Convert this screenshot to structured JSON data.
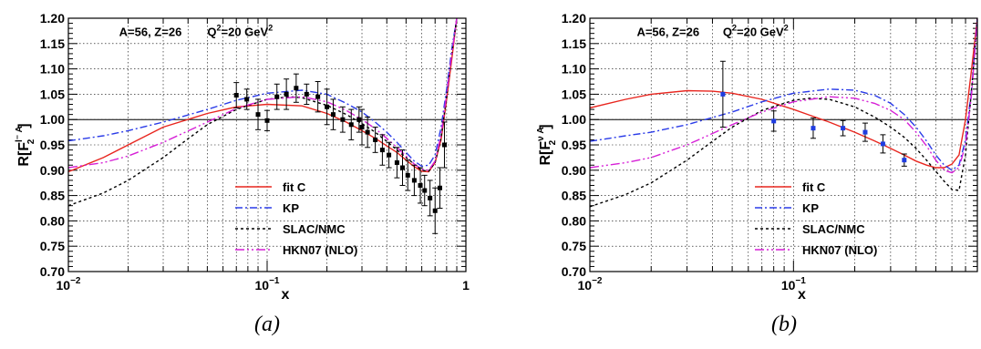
{
  "chart_data": [
    {
      "type": "line",
      "caption": "(a)",
      "xlabel": "x",
      "ylabel_parts": [
        "R[F",
        "l⁻ A",
        "2",
        "]"
      ],
      "xscale": "log",
      "xlim": [
        0.01,
        1.0
      ],
      "ylim": [
        0.7,
        1.2
      ],
      "grid": true,
      "xticks": [
        {
          "v": 0.01,
          "b": "10",
          "e": "−2"
        },
        {
          "v": 0.1,
          "b": "10",
          "e": "−1"
        },
        {
          "v": 1.0,
          "b": "1",
          "e": ""
        }
      ],
      "yticks": [
        0.7,
        0.75,
        0.8,
        0.85,
        0.9,
        0.95,
        1.0,
        1.05,
        1.1,
        1.15,
        1.2
      ],
      "ytick_labels": [
        "0.70",
        "0.75",
        "0.80",
        "0.85",
        "0.90",
        "0.95",
        "1.00",
        "1.05",
        "1.10",
        "1.15",
        "1.20"
      ],
      "annotations": [
        {
          "text": "A=56, Z=26",
          "x": 0.018,
          "y": 1.165
        },
        {
          "text_main": "Q",
          "sup1": "2",
          "text_rest": "=20 GeV",
          "sup2": "2",
          "x": 0.05,
          "y": 1.165
        }
      ],
      "legend_position": "lower-center",
      "reference_line": 1.0,
      "series": [
        {
          "name": "fit C",
          "color": "#e8261f",
          "dash": "solid",
          "x": [
            0.01,
            0.015,
            0.02,
            0.03,
            0.05,
            0.07,
            0.1,
            0.15,
            0.2,
            0.25,
            0.3,
            0.35,
            0.4,
            0.45,
            0.5,
            0.55,
            0.6,
            0.65,
            0.7,
            0.75,
            0.8,
            0.85,
            0.9
          ],
          "y": [
            0.897,
            0.925,
            0.95,
            0.985,
            1.012,
            1.025,
            1.03,
            1.027,
            1.012,
            0.995,
            0.978,
            0.963,
            0.948,
            0.935,
            0.92,
            0.907,
            0.898,
            0.897,
            0.915,
            0.96,
            1.04,
            1.12,
            1.2
          ]
        },
        {
          "name": "KP",
          "color": "#2a3be8",
          "dash": "8,3,2,3",
          "x": [
            0.01,
            0.015,
            0.02,
            0.03,
            0.05,
            0.07,
            0.1,
            0.15,
            0.2,
            0.25,
            0.3,
            0.35,
            0.4,
            0.45,
            0.5,
            0.55,
            0.6,
            0.65,
            0.7,
            0.75,
            0.8,
            0.85,
            0.9
          ],
          "y": [
            0.958,
            0.968,
            0.978,
            0.995,
            1.02,
            1.038,
            1.052,
            1.058,
            1.05,
            1.032,
            1.015,
            0.995,
            0.975,
            0.955,
            0.935,
            0.918,
            0.908,
            0.91,
            0.93,
            0.985,
            1.06,
            1.14,
            1.2
          ]
        },
        {
          "name": "SLAC/NMC",
          "color": "#000000",
          "dash": "3,3",
          "x": [
            0.01,
            0.015,
            0.02,
            0.03,
            0.04,
            0.05,
            0.07,
            0.1,
            0.13,
            0.15,
            0.2,
            0.25,
            0.3,
            0.35,
            0.4,
            0.45,
            0.5,
            0.55,
            0.6,
            0.65,
            0.7,
            0.75,
            0.8,
            0.85,
            0.9
          ],
          "y": [
            0.83,
            0.855,
            0.88,
            0.925,
            0.962,
            0.99,
            1.02,
            1.04,
            1.045,
            1.043,
            1.028,
            1.01,
            0.992,
            0.975,
            0.957,
            0.94,
            0.925,
            0.912,
            0.9,
            0.898,
            0.915,
            0.965,
            1.045,
            1.13,
            1.2
          ]
        },
        {
          "name": "HKN07 (NLO)",
          "color": "#d61fd6",
          "dash": "10,3,2,3,2,3",
          "x": [
            0.01,
            0.015,
            0.02,
            0.03,
            0.05,
            0.07,
            0.1,
            0.15,
            0.2,
            0.25,
            0.3,
            0.35,
            0.4,
            0.45,
            0.5,
            0.55,
            0.6,
            0.65,
            0.7,
            0.75,
            0.8,
            0.85,
            0.9
          ],
          "y": [
            0.905,
            0.915,
            0.928,
            0.955,
            0.995,
            1.022,
            1.04,
            1.045,
            1.035,
            1.018,
            1.0,
            0.982,
            0.963,
            0.945,
            0.928,
            0.912,
            0.902,
            0.9,
            0.918,
            0.97,
            1.05,
            1.13,
            1.2
          ]
        }
      ],
      "points": {
        "color": "#000000",
        "x": [
          0.07,
          0.079,
          0.09,
          0.1,
          0.112,
          0.125,
          0.14,
          0.158,
          0.18,
          0.2,
          0.215,
          0.24,
          0.265,
          0.29,
          0.3,
          0.32,
          0.35,
          0.38,
          0.41,
          0.45,
          0.48,
          0.51,
          0.55,
          0.59,
          0.62,
          0.66,
          0.7,
          0.74,
          0.78
        ],
        "y": [
          1.048,
          1.04,
          1.01,
          0.998,
          1.045,
          1.05,
          1.062,
          1.05,
          1.045,
          1.025,
          1.01,
          1.0,
          0.99,
          1.0,
          0.985,
          0.975,
          0.96,
          0.94,
          0.93,
          0.915,
          0.905,
          0.89,
          0.88,
          0.87,
          0.86,
          0.845,
          0.82,
          0.865,
          0.95
        ],
        "err": [
          0.025,
          0.02,
          0.03,
          0.02,
          0.025,
          0.03,
          0.028,
          0.02,
          0.03,
          0.035,
          0.03,
          0.025,
          0.03,
          0.025,
          0.035,
          0.03,
          0.025,
          0.03,
          0.025,
          0.03,
          0.035,
          0.03,
          0.03,
          0.035,
          0.03,
          0.035,
          0.045,
          0.04,
          0.045
        ]
      }
    },
    {
      "type": "line",
      "caption": "(b)",
      "xlabel": "x",
      "ylabel_parts": [
        "R[F",
        "ν A",
        "2",
        "]"
      ],
      "xscale": "log",
      "xlim": [
        0.01,
        0.8
      ],
      "ylim": [
        0.7,
        1.2
      ],
      "grid": true,
      "xticks": [
        {
          "v": 0.01,
          "b": "10",
          "e": "−2"
        },
        {
          "v": 0.1,
          "b": "10",
          "e": "−1"
        }
      ],
      "yticks": [
        0.7,
        0.75,
        0.8,
        0.85,
        0.9,
        0.95,
        1.0,
        1.05,
        1.1,
        1.15,
        1.2
      ],
      "ytick_labels": [
        "0.70",
        "0.75",
        "0.80",
        "0.85",
        "0.90",
        "0.95",
        "1.00",
        "1.05",
        "1.10",
        "1.15",
        "1.20"
      ],
      "annotations": [
        {
          "text": "A=56, Z=26",
          "x": 0.017,
          "y": 1.165
        },
        {
          "text_main": "Q",
          "sup1": "2",
          "text_rest": "=20 GeV",
          "sup2": "2",
          "x": 0.045,
          "y": 1.165
        }
      ],
      "legend_position": "lower-center",
      "reference_line": 1.0,
      "series": [
        {
          "name": "fit C",
          "color": "#e8261f",
          "dash": "solid",
          "x": [
            0.01,
            0.015,
            0.02,
            0.03,
            0.04,
            0.05,
            0.07,
            0.1,
            0.15,
            0.2,
            0.25,
            0.3,
            0.35,
            0.4,
            0.45,
            0.5,
            0.55,
            0.6,
            0.65,
            0.7,
            0.75,
            0.8
          ],
          "y": [
            1.023,
            1.04,
            1.05,
            1.057,
            1.056,
            1.052,
            1.04,
            1.02,
            0.995,
            0.975,
            0.958,
            0.943,
            0.93,
            0.918,
            0.91,
            0.905,
            0.905,
            0.912,
            0.93,
            1.0,
            1.1,
            1.2
          ]
        },
        {
          "name": "KP",
          "color": "#2a3be8",
          "dash": "8,3,2,3",
          "x": [
            0.01,
            0.015,
            0.02,
            0.03,
            0.05,
            0.07,
            0.1,
            0.15,
            0.2,
            0.25,
            0.3,
            0.35,
            0.4,
            0.45,
            0.5,
            0.55,
            0.6,
            0.65,
            0.7,
            0.75,
            0.8
          ],
          "y": [
            0.957,
            0.968,
            0.975,
            0.99,
            1.015,
            1.035,
            1.052,
            1.06,
            1.058,
            1.048,
            1.032,
            1.01,
            0.985,
            0.958,
            0.93,
            0.91,
            0.9,
            0.91,
            0.96,
            1.06,
            1.2
          ]
        },
        {
          "name": "SLAC/NMC",
          "color": "#000000",
          "dash": "3,3",
          "x": [
            0.01,
            0.015,
            0.02,
            0.03,
            0.04,
            0.05,
            0.07,
            0.1,
            0.12,
            0.15,
            0.2,
            0.25,
            0.3,
            0.35,
            0.4,
            0.45,
            0.5,
            0.55,
            0.6,
            0.65,
            0.7,
            0.75,
            0.8
          ],
          "y": [
            0.828,
            0.852,
            0.875,
            0.92,
            0.957,
            0.985,
            1.018,
            1.038,
            1.042,
            1.04,
            1.025,
            1.005,
            0.985,
            0.965,
            0.943,
            0.92,
            0.898,
            0.878,
            0.862,
            0.86,
            0.93,
            1.06,
            1.2
          ]
        },
        {
          "name": "HKN07 (NLO)",
          "color": "#d61fd6",
          "dash": "10,3,2,3,2,3",
          "x": [
            0.01,
            0.015,
            0.02,
            0.03,
            0.05,
            0.07,
            0.1,
            0.15,
            0.2,
            0.25,
            0.3,
            0.35,
            0.4,
            0.45,
            0.5,
            0.55,
            0.6,
            0.65,
            0.7,
            0.75,
            0.8
          ],
          "y": [
            0.905,
            0.915,
            0.925,
            0.95,
            0.99,
            1.015,
            1.035,
            1.045,
            1.042,
            1.032,
            1.018,
            1.0,
            0.975,
            0.948,
            0.92,
            0.9,
            0.895,
            0.905,
            0.95,
            1.05,
            1.2
          ]
        }
      ],
      "points": {
        "color": "#1f3ce0",
        "x": [
          0.045,
          0.08,
          0.125,
          0.175,
          0.225,
          0.275,
          0.35
        ],
        "y": [
          1.05,
          0.997,
          0.983,
          0.983,
          0.975,
          0.952,
          0.92
        ],
        "err": [
          0.065,
          0.02,
          0.02,
          0.015,
          0.018,
          0.018,
          0.012
        ]
      }
    }
  ]
}
